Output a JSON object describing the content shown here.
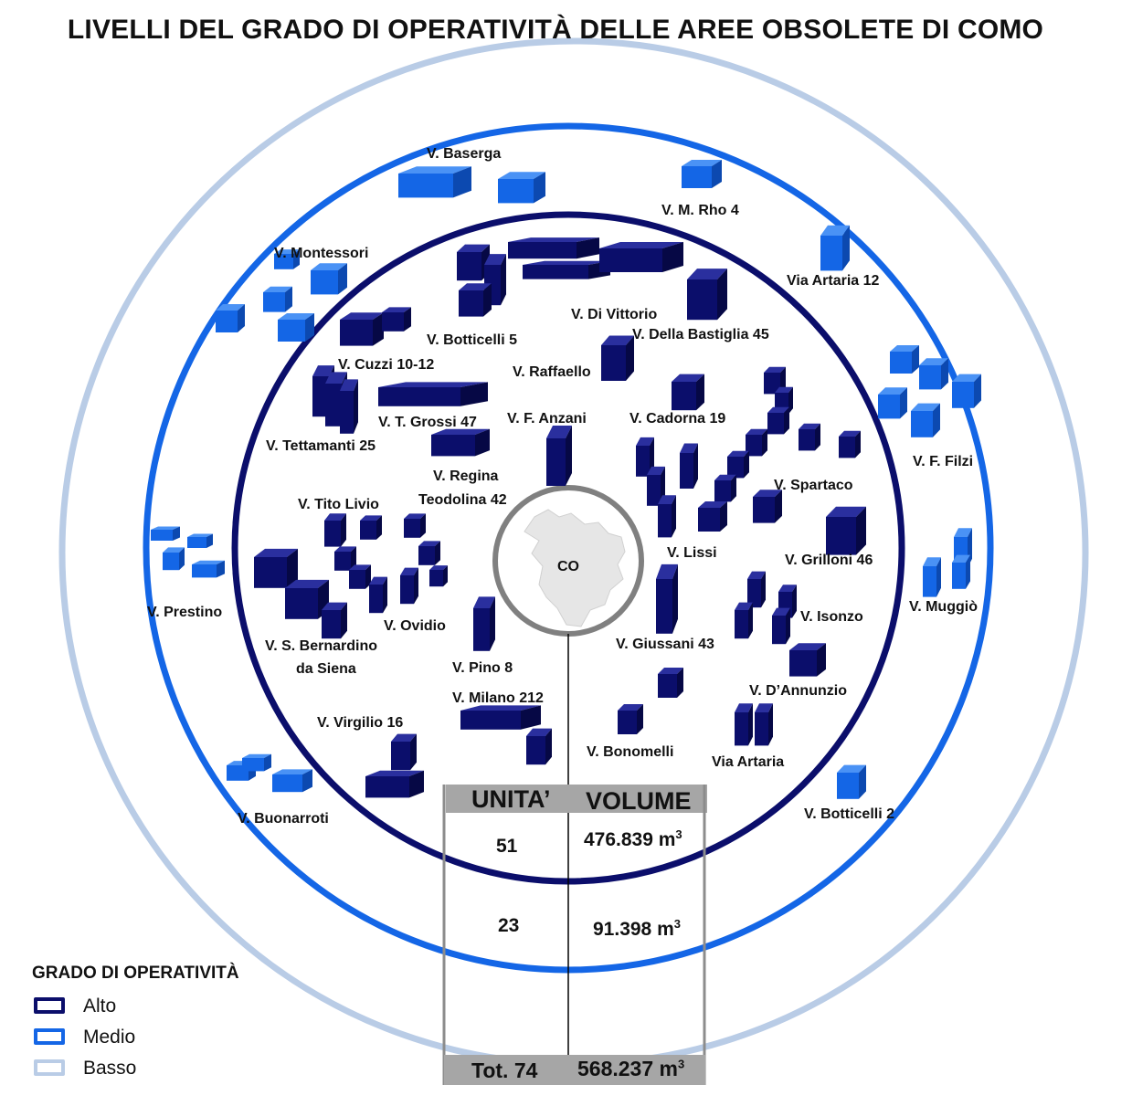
{
  "title": "LIVELLI DEL GRADO DI OPERATIVITÀ DELLE AREE OBSOLETE DI COMO",
  "colors": {
    "alto": "#0b0e6b",
    "medio": "#1466e6",
    "basso": "#b9cce6",
    "center_ring": "#808080",
    "city_shape": "#e6e6e6"
  },
  "center_label": "CO",
  "locations": {
    "baserga": "V. Baserga",
    "m_rho": "V. M. Rho 4",
    "via_artaria_12": "Via Artaria 12",
    "montessori": "V. Montessori",
    "di_vittorio": "V. Di Vittorio",
    "della_bastiglia": "V. Della Bastiglia 45",
    "botticelli_5": "V. Botticelli 5",
    "cuzzi": "V. Cuzzi 10-12",
    "raffaello": "V. Raffaello",
    "t_grossi": "V. T. Grossi 47",
    "f_anzani": "V. F. Anzani",
    "cadorna": "V. Cadorna 19",
    "tettamanti": "V. Tettamanti 25",
    "regina_line1": "V. Regina",
    "regina_line2": "Teodolina 42",
    "spartaco": "V. Spartaco",
    "f_filzi": "V. F. Filzi",
    "tito_livio": "V. Tito Livio",
    "lissi": "V. Lissi",
    "grilloni": "V. Grilloni 46",
    "prestino": "V. Prestino",
    "muggio": "V. Muggiò",
    "isonzo": "V. Isonzo",
    "ovidio": "V. Ovidio",
    "s_bernardino_line1": "V. S. Bernardino",
    "s_bernardino_line2": "da Siena",
    "giussani": "V. Giussani 43",
    "pino": "V. Pino 8",
    "milano": "V. Milano 212",
    "d_annunzio": "V. D’Annunzio",
    "virgilio": "V. Virgilio 16",
    "bonomelli": "V. Bonomelli",
    "via_artaria": "Via Artaria",
    "buonarroti": "V. Buonarroti",
    "botticelli_2": "V. Botticelli 2"
  },
  "table": {
    "header_units": "UNITA’",
    "header_volume": "VOLUME",
    "rows": [
      {
        "units": "51",
        "volume": "476.839 m",
        "unit_exp": "3"
      },
      {
        "units": "23",
        "volume": "91.398 m",
        "unit_exp": "3"
      }
    ],
    "total_units": "Tot. 74",
    "total_volume": "568.237 m",
    "total_exp": "3"
  },
  "legend": {
    "title": "GRADO DI OPERATIVITÀ",
    "items": [
      {
        "label": "Alto",
        "color": "#0b0e6b"
      },
      {
        "label": "Medio",
        "color": "#1466e6"
      },
      {
        "label": "Basso",
        "color": "#b9cce6"
      }
    ]
  }
}
